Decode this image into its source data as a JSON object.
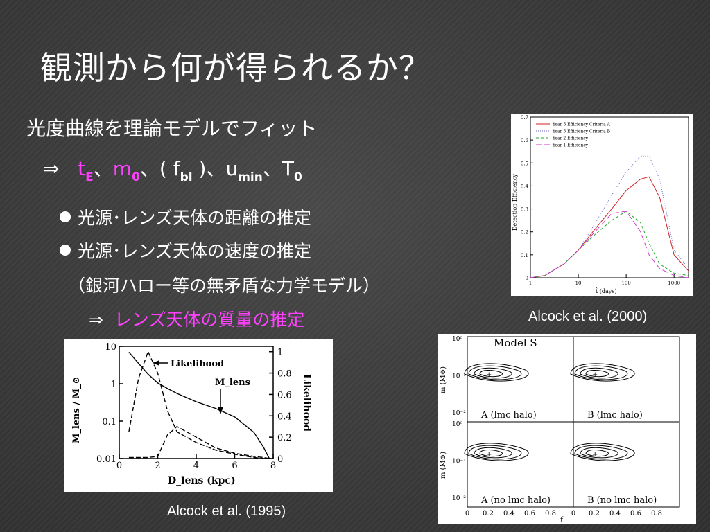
{
  "title": "観測から何が得られるか？",
  "lines": {
    "fit": "光度曲線を理論モデルでフィット",
    "arrow": "⇒",
    "params": {
      "tE_t": "t",
      "tE_sub": "E",
      "sep1": "、",
      "m_m": "m",
      "m_sub": "0",
      "sep2": "、( ",
      "f_f": "f",
      "f_sub": "bl",
      "sep3": " )、",
      "u_u": "u",
      "u_sub": "min",
      "sep4": "、",
      "T_T": "T",
      "T_sub": "0"
    },
    "bullet1": "光源･レンズ天体の距離の推定",
    "bullet2": "光源･レンズ天体の速度の推定",
    "paren": "（銀河ハロー等の無矛盾な力学モデル）",
    "arrow2": "⇒",
    "conclusion": "レンズ天体の質量の推定"
  },
  "captions": {
    "efficiency": "Alcock et al. (2000)",
    "likelihood": "Alcock et al. (1995)"
  },
  "efficiency_chart": {
    "ylabel": "Detection Efficiency",
    "xlabel": "t̂ (days)",
    "yticks": [
      "0",
      "0.1",
      "0.2",
      "0.3",
      "0.4",
      "0.5",
      "0.6",
      "0.7"
    ],
    "xticks": [
      "1",
      "10",
      "100",
      "1000"
    ],
    "legend": [
      "Year 5 Efficiency Criteria A",
      "Year 5 Efficiency Criteria B",
      "Year 2 Efficiency",
      "Year 1 Efficiency"
    ]
  },
  "likelihood_chart": {
    "ylabel_left": "M_lens / M_⊙",
    "ylabel_right": "Likelihood",
    "xlabel": "D_lens (kpc)",
    "yticks_left": [
      "0.01",
      "0.1",
      "1",
      "10"
    ],
    "yticks_right": [
      "0",
      "0.2",
      "0.4",
      "0.6",
      "0.8",
      "1"
    ],
    "xticks": [
      "0",
      "2",
      "4",
      "6",
      "8"
    ],
    "annot_likelihood": "Likelihood",
    "annot_mlens": "M_lens"
  },
  "contour_chart": {
    "title": "Model S",
    "panels": [
      "A (lmc halo)",
      "B (lmc halo)",
      "A (no lmc halo)",
      "B (no lmc halo)"
    ],
    "ylabel": "m (M⊙)",
    "xlabel": "f",
    "yticks": [
      "10⁻²",
      "10⁻¹",
      "10⁰"
    ],
    "xticks": [
      "0",
      "0.2",
      "0.4",
      "0.6",
      "0.8"
    ]
  },
  "chart_data": [
    {
      "type": "line",
      "title": "",
      "xlabel": "t̂ (days)",
      "ylabel": "Detection Efficiency",
      "xscale": "log",
      "xlim": [
        1,
        2000
      ],
      "ylim": [
        0,
        0.7
      ],
      "x": [
        1,
        2,
        5,
        10,
        20,
        50,
        100,
        200,
        300,
        500,
        1000,
        2000
      ],
      "series": [
        {
          "name": "Year 5 Efficiency Criteria A",
          "color": "#cc2222",
          "values": [
            0,
            0.01,
            0.06,
            0.12,
            0.2,
            0.3,
            0.38,
            0.43,
            0.44,
            0.35,
            0.1,
            0.03
          ]
        },
        {
          "name": "Year 5 Efficiency Criteria B",
          "color": "#6666cc",
          "values": [
            0,
            0.01,
            0.06,
            0.12,
            0.22,
            0.36,
            0.46,
            0.53,
            0.53,
            0.43,
            0.12,
            0.04
          ]
        },
        {
          "name": "Year 2 Efficiency",
          "color": "#22aa22",
          "values": [
            0,
            0.01,
            0.06,
            0.12,
            0.18,
            0.25,
            0.29,
            0.24,
            0.15,
            0.06,
            0.02,
            0.01
          ]
        },
        {
          "name": "Year 1 Efficiency",
          "color": "#cc33cc",
          "values": [
            0,
            0.01,
            0.06,
            0.12,
            0.19,
            0.28,
            0.29,
            0.2,
            0.1,
            0.04,
            0.01,
            0
          ]
        }
      ],
      "legend": "top-left"
    },
    {
      "type": "line",
      "title": "",
      "xlabel": "D_lens (kpc)",
      "ylabel": "M_lens / M_⊙",
      "y2label": "Likelihood",
      "xlim": [
        0,
        8
      ],
      "ylim": [
        0.01,
        10
      ],
      "y2lim": [
        0,
        1.05
      ],
      "x": [
        0.5,
        1,
        1.5,
        2,
        2.5,
        3,
        4,
        5,
        6,
        7,
        7.5,
        7.8
      ],
      "series": [
        {
          "name": "M_lens",
          "axis": "left",
          "values": [
            7,
            3.5,
            1.8,
            1.05,
            0.75,
            0.55,
            0.33,
            0.22,
            0.13,
            0.05,
            0.02,
            0.01
          ]
        },
        {
          "name": "Likelihood",
          "axis": "right",
          "values": [
            0.25,
            0.75,
            1.0,
            0.8,
            0.45,
            0.25,
            0.15,
            0.08,
            0.04,
            0.01,
            0,
            0
          ]
        },
        {
          "name": "Likelihood (secondary)",
          "axis": "right",
          "values": [
            0.01,
            0.01,
            0.01,
            0.02,
            0.22,
            0.3,
            0.2,
            0.1,
            0.05,
            0.02,
            0.01,
            0
          ]
        }
      ]
    }
  ]
}
